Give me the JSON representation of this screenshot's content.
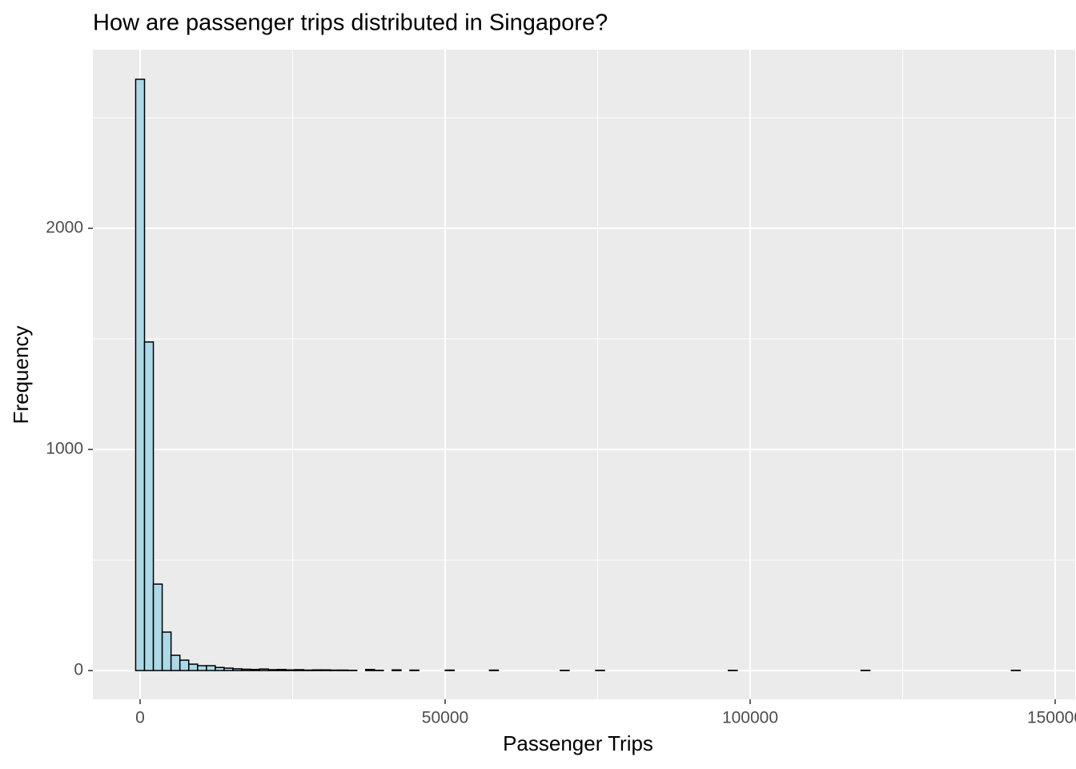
{
  "chart_data": {
    "type": "histogram",
    "title": "How are passenger trips distributed in Singapore?",
    "x_label": "Passenger Trips",
    "y_label": "Frequency",
    "bins": [
      -725,
      725,
      2175,
      3625,
      5075,
      6525,
      7975,
      9425,
      10875,
      12325,
      13775,
      15225,
      16675,
      18125,
      19575,
      21025,
      22475,
      23925,
      25375,
      26825,
      28275,
      29725,
      31175,
      32625,
      34075,
      35525,
      36975,
      38425,
      39875,
      41325,
      42775,
      44225,
      45675,
      47125,
      48575,
      50025,
      51475,
      52925,
      54375,
      55825,
      57275,
      58725,
      60175,
      61625,
      63075,
      64525,
      65975,
      67425,
      68875,
      70325,
      71775,
      73225,
      74675,
      76125,
      77575,
      79025,
      80475,
      81925,
      83375,
      84825,
      86275,
      87725,
      89175,
      90625,
      92075,
      93525,
      94975,
      96425,
      97875,
      99325,
      100775,
      102225,
      103675,
      105125,
      106575,
      108025,
      109475,
      110925,
      112375,
      113825,
      115275,
      116725,
      118175,
      119625,
      121075,
      122525,
      123975,
      125425,
      126875,
      128325,
      129775,
      131225,
      132675,
      134125,
      135575,
      137025,
      138475,
      139925,
      141375,
      142825,
      144275
    ],
    "values": [
      2674,
      1486,
      391,
      174,
      69,
      47,
      29,
      22,
      22,
      14,
      11,
      8,
      6,
      5,
      7,
      4,
      5,
      3,
      4,
      2,
      3,
      3,
      2,
      2,
      1,
      0,
      5,
      1,
      0,
      3,
      0,
      2,
      0,
      0,
      0,
      2,
      0,
      0,
      0,
      0,
      2,
      0,
      0,
      0,
      0,
      0,
      0,
      0,
      1,
      0,
      0,
      0,
      1,
      0,
      0,
      0,
      0,
      0,
      0,
      0,
      0,
      0,
      0,
      0,
      0,
      0,
      0,
      1,
      0,
      0,
      0,
      0,
      0,
      0,
      0,
      0,
      0,
      0,
      0,
      0,
      0,
      0,
      1,
      0,
      0,
      0,
      0,
      0,
      0,
      0,
      0,
      0,
      0,
      0,
      0,
      0,
      0,
      0,
      0,
      1
    ],
    "color": "#add8e6",
    "edge_color": "#000000",
    "xlim": [
      -7740,
      153280
    ],
    "ylim": [
      -130,
      2808
    ],
    "xticks": [
      0,
      50000,
      100000,
      150000
    ],
    "yticks": [
      0,
      1000,
      2000
    ],
    "grid": true
  }
}
